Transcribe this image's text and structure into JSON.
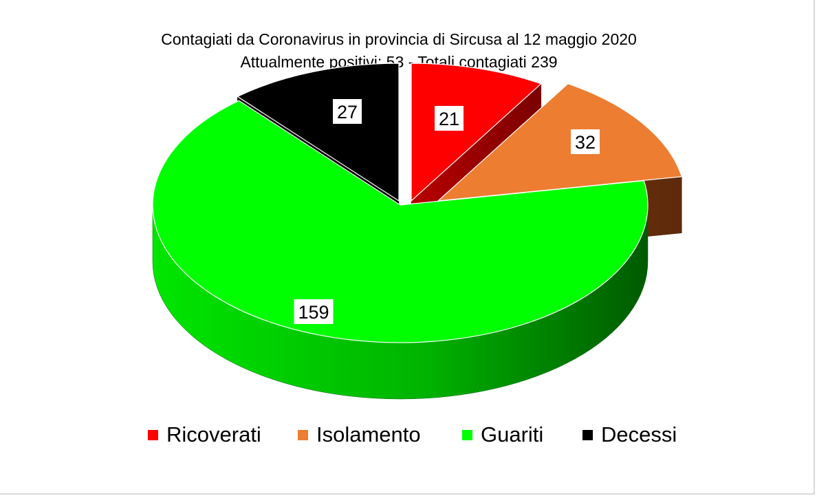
{
  "chart_data": {
    "type": "pie",
    "title": "Contagiati da Coronavirus in provincia di Sircusa al 12 maggio 2020",
    "subtitle": "Attualmente positivi: 53 - Totali contagiati 239",
    "slices": [
      {
        "name": "Ricoverati",
        "value": 21,
        "color": "#ff0000"
      },
      {
        "name": "Isolamento",
        "value": 32,
        "color": "#ed7d31"
      },
      {
        "name": "Guariti",
        "value": 159,
        "color": "#00ff00"
      },
      {
        "name": "Decessi",
        "value": 27,
        "color": "#000000"
      }
    ],
    "data_labels": [
      "21",
      "32",
      "159",
      "27"
    ],
    "legend_position": "bottom",
    "style": "3d-exploded"
  }
}
